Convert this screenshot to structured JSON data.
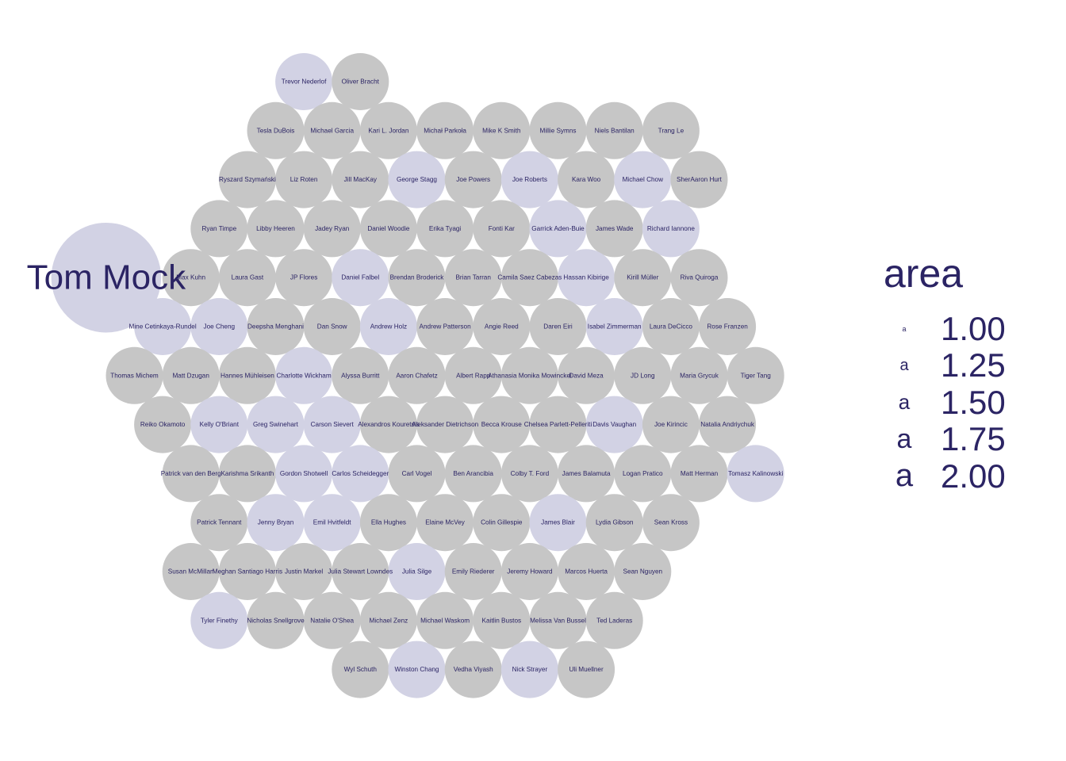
{
  "colors": {
    "base": "#c6c6c6",
    "highlight": "#d2d2e4",
    "text": "#2b2464"
  },
  "chart_data": {
    "type": "scatter",
    "title": "",
    "legend": {
      "title": "area",
      "placement": "right",
      "values": [
        "1.00",
        "1.25",
        "1.50",
        "1.75",
        "2.00"
      ]
    },
    "points": [
      {
        "name": "Tom Mock",
        "area": 2,
        "highlight": true,
        "row": 4,
        "col": -0.5
      },
      {
        "name": "Trevor Nederlof",
        "area": 1,
        "highlight": true,
        "row": 0,
        "col": 3
      },
      {
        "name": "Oliver Bracht",
        "area": 1,
        "highlight": false,
        "row": 0,
        "col": 4
      },
      {
        "name": "Tesla DuBois",
        "area": 1,
        "highlight": false,
        "row": 1,
        "col": 2.5
      },
      {
        "name": "Michael Garcia",
        "area": 1,
        "highlight": false,
        "row": 1,
        "col": 3.5
      },
      {
        "name": "Kari L. Jordan",
        "area": 1,
        "highlight": false,
        "row": 1,
        "col": 4.5
      },
      {
        "name": "Michał Parkoła",
        "area": 1,
        "highlight": false,
        "row": 1,
        "col": 5.5
      },
      {
        "name": "Mike K Smith",
        "area": 1,
        "highlight": false,
        "row": 1,
        "col": 6.5
      },
      {
        "name": "Millie Symns",
        "area": 1,
        "highlight": false,
        "row": 1,
        "col": 7.5
      },
      {
        "name": "Niels Bantilan",
        "area": 1,
        "highlight": false,
        "row": 1,
        "col": 8.5
      },
      {
        "name": "Trang Le",
        "area": 1,
        "highlight": false,
        "row": 1,
        "col": 9.5
      },
      {
        "name": "Ryszard Szymański",
        "area": 1,
        "highlight": false,
        "row": 2,
        "col": 2
      },
      {
        "name": "Liz Roten",
        "area": 1,
        "highlight": false,
        "row": 2,
        "col": 3
      },
      {
        "name": "Jill MacKay",
        "area": 1,
        "highlight": false,
        "row": 2,
        "col": 4
      },
      {
        "name": "George Stagg",
        "area": 1,
        "highlight": true,
        "row": 2,
        "col": 5
      },
      {
        "name": "Joe Powers",
        "area": 1,
        "highlight": false,
        "row": 2,
        "col": 6
      },
      {
        "name": "Joe Roberts",
        "area": 1,
        "highlight": true,
        "row": 2,
        "col": 7
      },
      {
        "name": "Kara Woo",
        "area": 1,
        "highlight": false,
        "row": 2,
        "col": 8
      },
      {
        "name": "Michael Chow",
        "area": 1,
        "highlight": true,
        "row": 2,
        "col": 9
      },
      {
        "name": "SherAaron Hurt",
        "area": 1,
        "highlight": false,
        "row": 2,
        "col": 10
      },
      {
        "name": "Ryan Timpe",
        "area": 1,
        "highlight": false,
        "row": 3,
        "col": 1.5
      },
      {
        "name": "Libby Heeren",
        "area": 1,
        "highlight": false,
        "row": 3,
        "col": 2.5
      },
      {
        "name": "Jadey Ryan",
        "area": 1,
        "highlight": false,
        "row": 3,
        "col": 3.5
      },
      {
        "name": "Daniel Woodie",
        "area": 1,
        "highlight": false,
        "row": 3,
        "col": 4.5
      },
      {
        "name": "Erika Tyagi",
        "area": 1,
        "highlight": false,
        "row": 3,
        "col": 5.5
      },
      {
        "name": "Fonti Kar",
        "area": 1,
        "highlight": false,
        "row": 3,
        "col": 6.5
      },
      {
        "name": "Garrick Aden-Buie",
        "area": 1,
        "highlight": true,
        "row": 3,
        "col": 7.5
      },
      {
        "name": "James Wade",
        "area": 1,
        "highlight": false,
        "row": 3,
        "col": 8.5
      },
      {
        "name": "Richard Iannone",
        "area": 1,
        "highlight": true,
        "row": 3,
        "col": 9.5
      },
      {
        "name": "Max Kuhn",
        "area": 1,
        "highlight": false,
        "row": 4,
        "col": 1
      },
      {
        "name": "Laura Gast",
        "area": 1,
        "highlight": false,
        "row": 4,
        "col": 2
      },
      {
        "name": "JP Flores",
        "area": 1,
        "highlight": false,
        "row": 4,
        "col": 3
      },
      {
        "name": "Daniel Falbel",
        "area": 1,
        "highlight": true,
        "row": 4,
        "col": 4
      },
      {
        "name": "Brendan Broderick",
        "area": 1,
        "highlight": false,
        "row": 4,
        "col": 5
      },
      {
        "name": "Brian Tarran",
        "area": 1,
        "highlight": false,
        "row": 4,
        "col": 6
      },
      {
        "name": "Camila Saez Cabezas",
        "area": 1,
        "highlight": false,
        "row": 4,
        "col": 7
      },
      {
        "name": "Hassan Kibirige",
        "area": 1,
        "highlight": true,
        "row": 4,
        "col": 8
      },
      {
        "name": "Kirill Müller",
        "area": 1,
        "highlight": false,
        "row": 4,
        "col": 9
      },
      {
        "name": "Riva Quiroga",
        "area": 1,
        "highlight": false,
        "row": 4,
        "col": 10
      },
      {
        "name": "Mine Cetinkaya-Rundel",
        "area": 1,
        "highlight": true,
        "row": 5,
        "col": 0.5
      },
      {
        "name": "Joe Cheng",
        "area": 1,
        "highlight": true,
        "row": 5,
        "col": 1.5
      },
      {
        "name": "Deepsha Menghani",
        "area": 1,
        "highlight": false,
        "row": 5,
        "col": 2.5
      },
      {
        "name": "Dan Snow",
        "area": 1,
        "highlight": false,
        "row": 5,
        "col": 3.5
      },
      {
        "name": "Andrew Holz",
        "area": 1,
        "highlight": true,
        "row": 5,
        "col": 4.5
      },
      {
        "name": "Andrew Patterson",
        "area": 1,
        "highlight": false,
        "row": 5,
        "col": 5.5
      },
      {
        "name": "Angie Reed",
        "area": 1,
        "highlight": false,
        "row": 5,
        "col": 6.5
      },
      {
        "name": "Daren Eiri",
        "area": 1,
        "highlight": false,
        "row": 5,
        "col": 7.5
      },
      {
        "name": "Isabel Zimmerman",
        "area": 1,
        "highlight": true,
        "row": 5,
        "col": 8.5
      },
      {
        "name": "Laura DeCicco",
        "area": 1,
        "highlight": false,
        "row": 5,
        "col": 9.5
      },
      {
        "name": "Rose Franzen",
        "area": 1,
        "highlight": false,
        "row": 5,
        "col": 10.5
      },
      {
        "name": "Thomas Michem",
        "area": 1,
        "highlight": false,
        "row": 6,
        "col": 0
      },
      {
        "name": "Matt Dzugan",
        "area": 1,
        "highlight": false,
        "row": 6,
        "col": 1
      },
      {
        "name": "Hannes Mühleisen",
        "area": 1,
        "highlight": false,
        "row": 6,
        "col": 2
      },
      {
        "name": "Charlotte Wickham",
        "area": 1,
        "highlight": true,
        "row": 6,
        "col": 3
      },
      {
        "name": "Alyssa Burritt",
        "area": 1,
        "highlight": false,
        "row": 6,
        "col": 4
      },
      {
        "name": "Aaron Chafetz",
        "area": 1,
        "highlight": false,
        "row": 6,
        "col": 5
      },
      {
        "name": "Albert Rapp",
        "area": 1,
        "highlight": false,
        "row": 6,
        "col": 6
      },
      {
        "name": "Athanasia Monika Mowinckel",
        "area": 1,
        "highlight": false,
        "row": 6,
        "col": 7
      },
      {
        "name": "David Meza",
        "area": 1,
        "highlight": false,
        "row": 6,
        "col": 8
      },
      {
        "name": "JD Long",
        "area": 1,
        "highlight": false,
        "row": 6,
        "col": 9
      },
      {
        "name": "Maria Grycuk",
        "area": 1,
        "highlight": false,
        "row": 6,
        "col": 10
      },
      {
        "name": "Tiger Tang",
        "area": 1,
        "highlight": false,
        "row": 6,
        "col": 11
      },
      {
        "name": "Reiko Okamoto",
        "area": 1,
        "highlight": false,
        "row": 7,
        "col": 0.5
      },
      {
        "name": "Kelly O'Briant",
        "area": 1,
        "highlight": true,
        "row": 7,
        "col": 1.5
      },
      {
        "name": "Greg Swinehart",
        "area": 1,
        "highlight": true,
        "row": 7,
        "col": 2.5
      },
      {
        "name": "Carson Sievert",
        "area": 1,
        "highlight": true,
        "row": 7,
        "col": 3.5
      },
      {
        "name": "Alexandros Kouretsis",
        "area": 1,
        "highlight": false,
        "row": 7,
        "col": 4.5
      },
      {
        "name": "Aleksander Dietrichson",
        "area": 1,
        "highlight": false,
        "row": 7,
        "col": 5.5
      },
      {
        "name": "Becca Krouse",
        "area": 1,
        "highlight": false,
        "row": 7,
        "col": 6.5
      },
      {
        "name": "Chelsea Parlett-Pelleriti",
        "area": 1,
        "highlight": false,
        "row": 7,
        "col": 7.5
      },
      {
        "name": "Davis Vaughan",
        "area": 1,
        "highlight": true,
        "row": 7,
        "col": 8.5
      },
      {
        "name": "Joe Kirincic",
        "area": 1,
        "highlight": false,
        "row": 7,
        "col": 9.5
      },
      {
        "name": "Natalia Andriychuk",
        "area": 1,
        "highlight": false,
        "row": 7,
        "col": 10.5
      },
      {
        "name": "Patrick van den Berg",
        "area": 1,
        "highlight": false,
        "row": 8,
        "col": 1
      },
      {
        "name": "Karishma Srikanth",
        "area": 1,
        "highlight": false,
        "row": 8,
        "col": 2
      },
      {
        "name": "Gordon Shotwell",
        "area": 1,
        "highlight": true,
        "row": 8,
        "col": 3
      },
      {
        "name": "Carlos Scheidegger",
        "area": 1,
        "highlight": true,
        "row": 8,
        "col": 4
      },
      {
        "name": "Carl Vogel",
        "area": 1,
        "highlight": false,
        "row": 8,
        "col": 5
      },
      {
        "name": "Ben Arancibia",
        "area": 1,
        "highlight": false,
        "row": 8,
        "col": 6
      },
      {
        "name": "Colby T. Ford",
        "area": 1,
        "highlight": false,
        "row": 8,
        "col": 7
      },
      {
        "name": "James Balamuta",
        "area": 1,
        "highlight": false,
        "row": 8,
        "col": 8
      },
      {
        "name": "Logan Pratico",
        "area": 1,
        "highlight": false,
        "row": 8,
        "col": 9
      },
      {
        "name": "Matt Herman",
        "area": 1,
        "highlight": false,
        "row": 8,
        "col": 10
      },
      {
        "name": "Tomasz Kalinowski",
        "area": 1,
        "highlight": true,
        "row": 8,
        "col": 11
      },
      {
        "name": "Patrick Tennant",
        "area": 1,
        "highlight": false,
        "row": 9,
        "col": 1.5
      },
      {
        "name": "Jenny Bryan",
        "area": 1,
        "highlight": true,
        "row": 9,
        "col": 2.5
      },
      {
        "name": "Emil Hvitfeldt",
        "area": 1,
        "highlight": true,
        "row": 9,
        "col": 3.5
      },
      {
        "name": "Ella Hughes",
        "area": 1,
        "highlight": false,
        "row": 9,
        "col": 4.5
      },
      {
        "name": "Elaine McVey",
        "area": 1,
        "highlight": false,
        "row": 9,
        "col": 5.5
      },
      {
        "name": "Colin Gillespie",
        "area": 1,
        "highlight": false,
        "row": 9,
        "col": 6.5
      },
      {
        "name": "James Blair",
        "area": 1,
        "highlight": true,
        "row": 9,
        "col": 7.5
      },
      {
        "name": "Lydia Gibson",
        "area": 1,
        "highlight": false,
        "row": 9,
        "col": 8.5
      },
      {
        "name": "Sean Kross",
        "area": 1,
        "highlight": false,
        "row": 9,
        "col": 9.5
      },
      {
        "name": "Susan McMillan",
        "area": 1,
        "highlight": false,
        "row": 10,
        "col": 1
      },
      {
        "name": "Meghan Santiago Harris",
        "area": 1,
        "highlight": false,
        "row": 10,
        "col": 2
      },
      {
        "name": "Justin Markel",
        "area": 1,
        "highlight": false,
        "row": 10,
        "col": 3
      },
      {
        "name": "Julia Stewart Lowndes",
        "area": 1,
        "highlight": false,
        "row": 10,
        "col": 4
      },
      {
        "name": "Julia Silge",
        "area": 1,
        "highlight": true,
        "row": 10,
        "col": 5
      },
      {
        "name": "Emily Riederer",
        "area": 1,
        "highlight": false,
        "row": 10,
        "col": 6
      },
      {
        "name": "Jeremy Howard",
        "area": 1,
        "highlight": false,
        "row": 10,
        "col": 7
      },
      {
        "name": "Marcos Huerta",
        "area": 1,
        "highlight": false,
        "row": 10,
        "col": 8
      },
      {
        "name": "Sean Nguyen",
        "area": 1,
        "highlight": false,
        "row": 10,
        "col": 9
      },
      {
        "name": "Tyler Finethy",
        "area": 1,
        "highlight": true,
        "row": 11,
        "col": 1.5
      },
      {
        "name": "Nicholas Snellgrove",
        "area": 1,
        "highlight": false,
        "row": 11,
        "col": 2.5
      },
      {
        "name": "Natalie O'Shea",
        "area": 1,
        "highlight": false,
        "row": 11,
        "col": 3.5
      },
      {
        "name": "Michael Zenz",
        "area": 1,
        "highlight": false,
        "row": 11,
        "col": 4.5
      },
      {
        "name": "Michael Waskom",
        "area": 1,
        "highlight": false,
        "row": 11,
        "col": 5.5
      },
      {
        "name": "Kaitlin Bustos",
        "area": 1,
        "highlight": false,
        "row": 11,
        "col": 6.5
      },
      {
        "name": "Melissa Van Bussel",
        "area": 1,
        "highlight": false,
        "row": 11,
        "col": 7.5
      },
      {
        "name": "Ted Laderas",
        "area": 1,
        "highlight": false,
        "row": 11,
        "col": 8.5
      },
      {
        "name": "Wyl Schuth",
        "area": 1,
        "highlight": false,
        "row": 12,
        "col": 4
      },
      {
        "name": "Winston Chang",
        "area": 1,
        "highlight": true,
        "row": 12,
        "col": 5
      },
      {
        "name": "Vedha Viyash",
        "area": 1,
        "highlight": false,
        "row": 12,
        "col": 6
      },
      {
        "name": "Nick Strayer",
        "area": 1,
        "highlight": true,
        "row": 12,
        "col": 7
      },
      {
        "name": "Uli Muellner",
        "area": 1,
        "highlight": false,
        "row": 12,
        "col": 8
      }
    ]
  }
}
